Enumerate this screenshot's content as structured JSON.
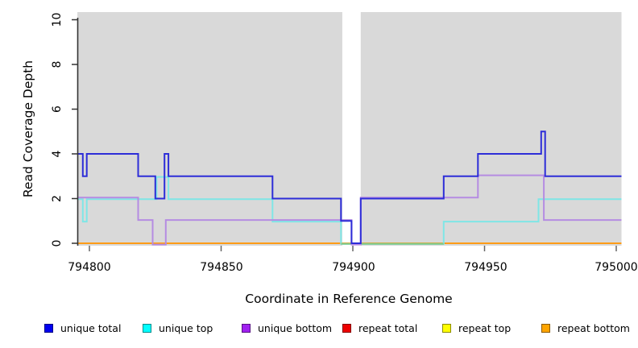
{
  "chart_data": {
    "type": "line",
    "subtype": "step-coverage",
    "xlabel": "Coordinate in Reference Genome",
    "ylabel": "Read Coverage Depth",
    "xlim": [
      794795.5,
      795002
    ],
    "ylim": [
      0,
      10
    ],
    "x_ticks": [
      794800,
      794850,
      794900,
      794950,
      795000
    ],
    "x_tick_labels": [
      "794800",
      "794850",
      "794900",
      "794950",
      "795000"
    ],
    "y_ticks": [
      0,
      2,
      4,
      6,
      8,
      10
    ],
    "y_tick_labels": [
      "0",
      "2",
      "4",
      "6",
      "8",
      "10"
    ],
    "plot_bg_color": "#d9d9d9",
    "gap_region": {
      "start": 794896,
      "end": 794903,
      "color": "#ffffff"
    },
    "series": [
      {
        "name": "unique total",
        "color": "#2d2dd8",
        "end": 795002,
        "points": [
          [
            794795.5,
            4
          ],
          [
            794797.5,
            3
          ],
          [
            794799,
            4
          ],
          [
            794818.5,
            3
          ],
          [
            794825,
            2
          ],
          [
            794828.5,
            4
          ],
          [
            794830,
            3
          ],
          [
            794869.5,
            2
          ],
          [
            794895.5,
            1
          ],
          [
            794899.5,
            0
          ],
          [
            794903,
            2
          ],
          [
            794934.5,
            3
          ],
          [
            794947.5,
            4
          ],
          [
            794971.5,
            5
          ],
          [
            794973,
            3
          ]
        ]
      },
      {
        "name": "unique top",
        "color": "#7fe6e6",
        "end": 795002,
        "points": [
          [
            794795.5,
            2
          ],
          [
            794797.5,
            1
          ],
          [
            794799,
            2
          ],
          [
            794825.5,
            3
          ],
          [
            794830,
            2
          ],
          [
            794869.5,
            1
          ],
          [
            794895.5,
            0
          ],
          [
            794934.5,
            1
          ],
          [
            794970.5,
            2
          ]
        ]
      },
      {
        "name": "unique bottom",
        "color": "#b58ce2",
        "end": 795002,
        "points": [
          [
            794795.5,
            2
          ],
          [
            794818.5,
            1
          ],
          [
            794824,
            0
          ],
          [
            794829,
            1
          ],
          [
            794899.5,
            0
          ],
          [
            794903,
            2
          ],
          [
            794947.5,
            3
          ],
          [
            794972.5,
            1
          ]
        ]
      },
      {
        "name": "repeat total",
        "color": "#e00000",
        "end": 795002,
        "points": [
          [
            794795.5,
            0
          ]
        ]
      },
      {
        "name": "repeat top",
        "color": "#ffff00",
        "end": 795002,
        "points": [
          [
            794795.5,
            0
          ]
        ]
      },
      {
        "name": "repeat bottom",
        "color": "#ff9c17",
        "end": 795002,
        "points": [
          [
            794795.5,
            0
          ]
        ]
      }
    ],
    "overlays": [
      {
        "note": "blend where unique-top line sits at 0 on top of repeat-bottom line",
        "color": "#7fcb8e",
        "value": 0,
        "from": 794895.5,
        "to": 794934.5
      }
    ],
    "axis_color": "#333333",
    "tick_color": "#666666"
  },
  "legend": {
    "items": [
      {
        "label": "unique total",
        "color": "#0000f0"
      },
      {
        "label": "unique top",
        "color": "#00ffff"
      },
      {
        "label": "unique bottom",
        "color": "#a020f0"
      },
      {
        "label": "repeat total",
        "color": "#ee0000"
      },
      {
        "label": "repeat top",
        "color": "#ffff00"
      },
      {
        "label": "repeat bottom",
        "color": "#ffa500"
      }
    ]
  }
}
